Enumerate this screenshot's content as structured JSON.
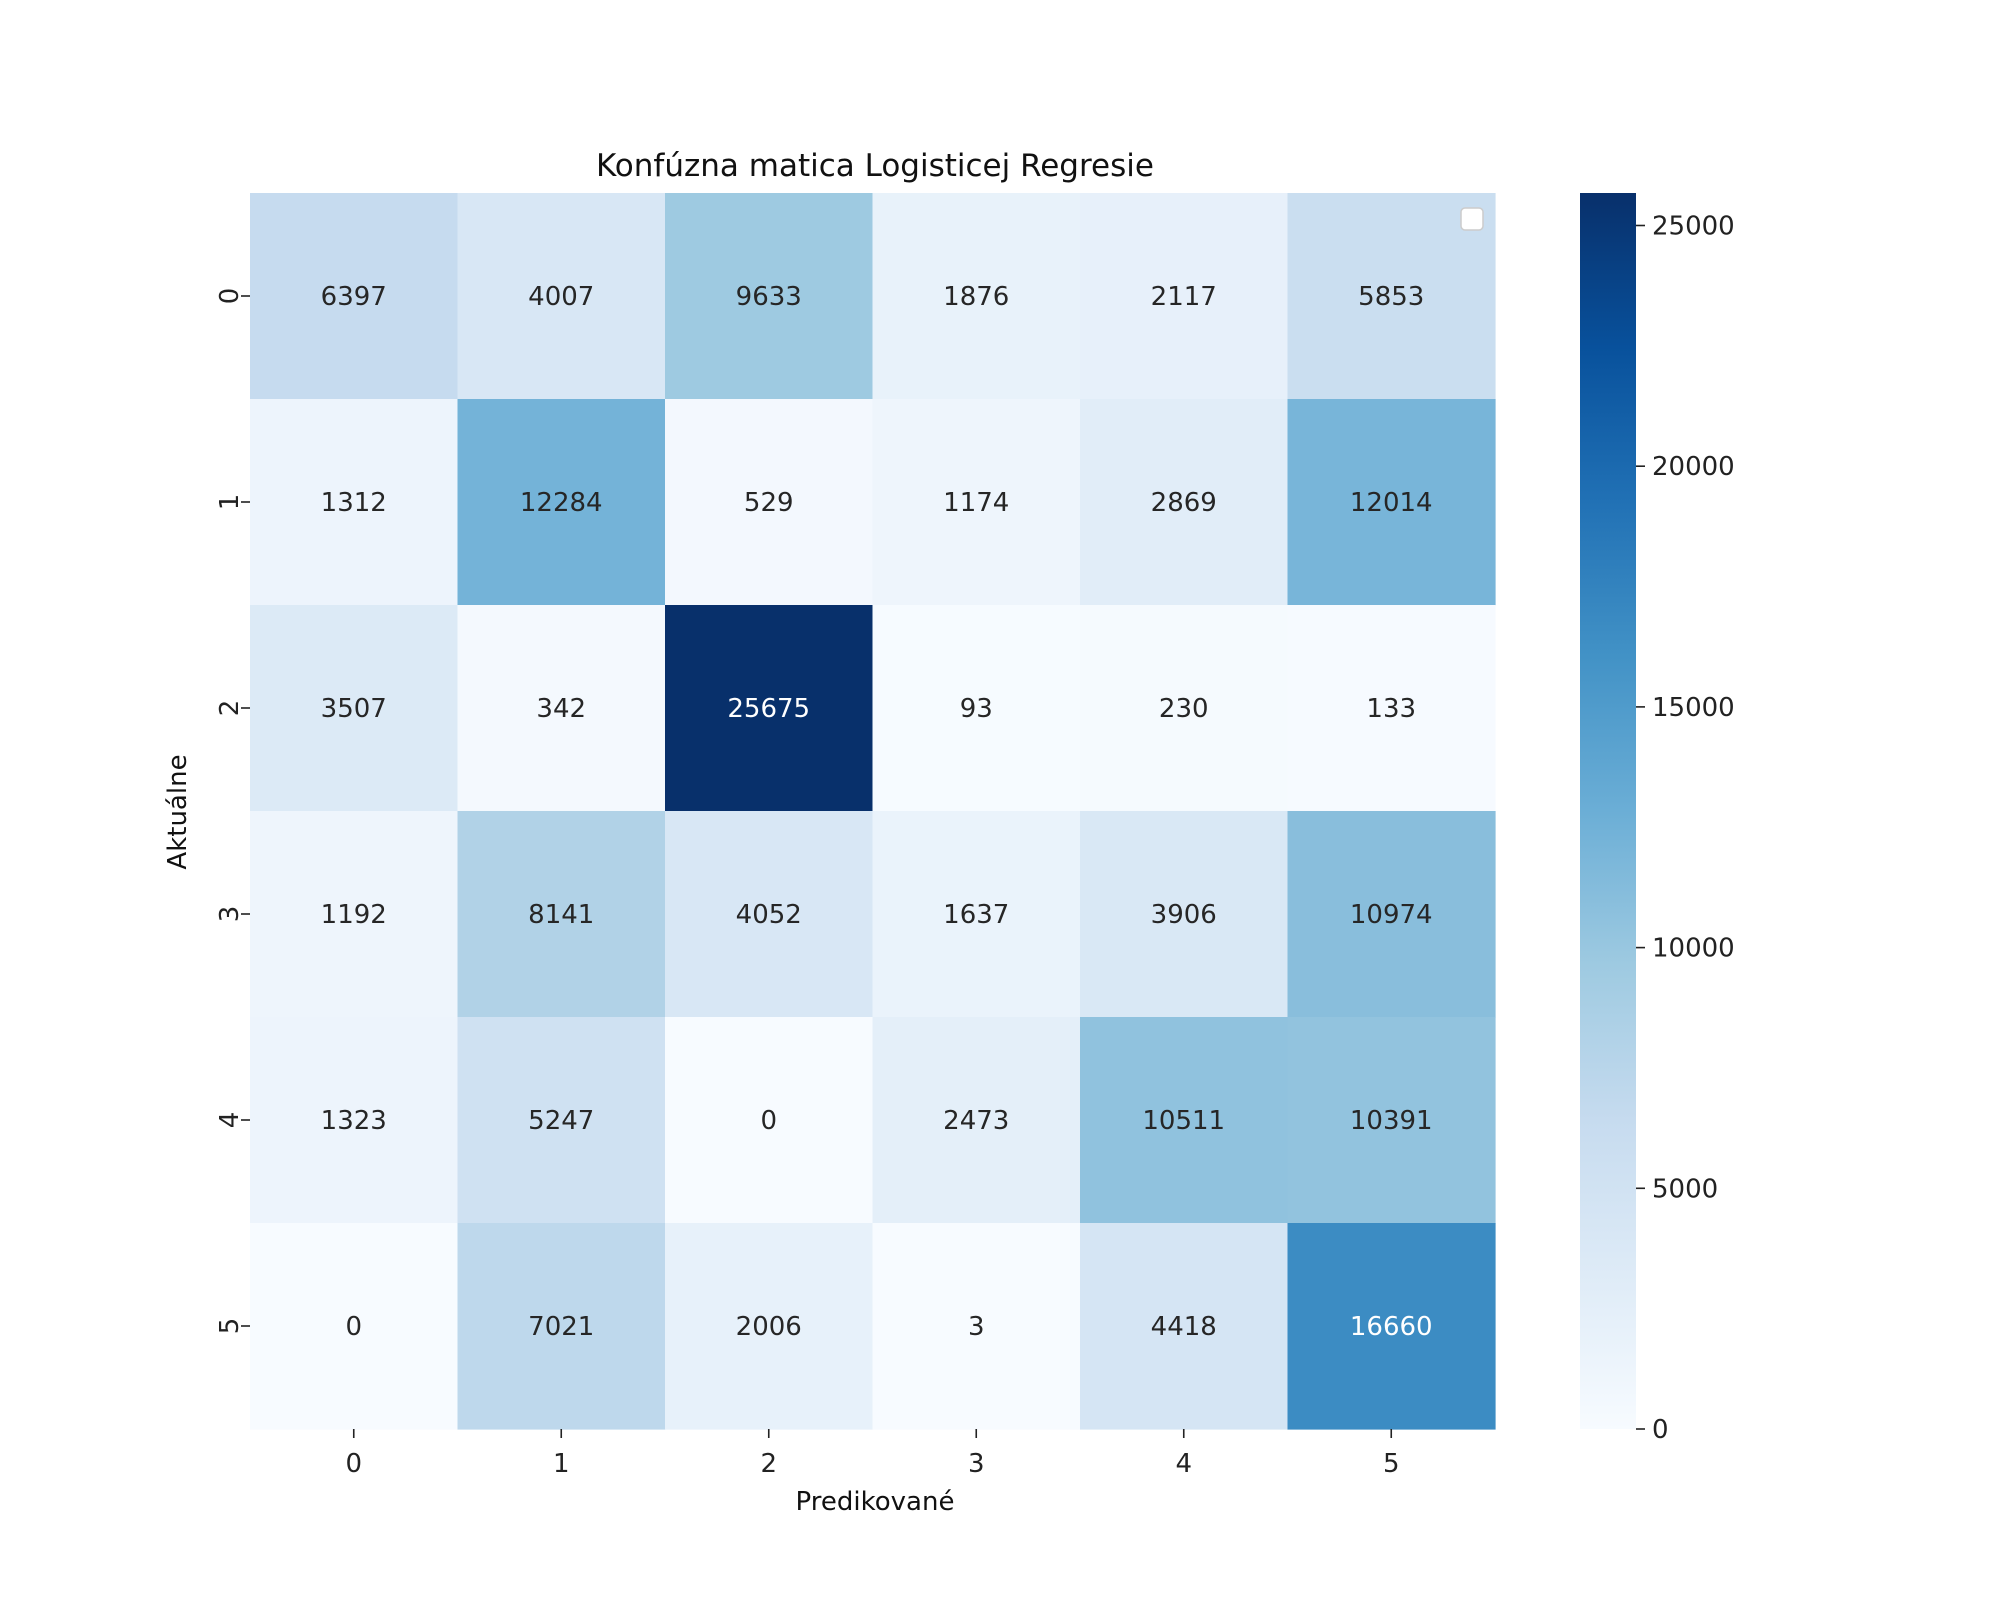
{
  "chart_data": {
    "type": "heatmap",
    "title": "Konfúzna matica Logisticej Regresie",
    "xlabel": "Predikované",
    "ylabel": "Aktuálne",
    "x_categories": [
      "0",
      "1",
      "2",
      "3",
      "4",
      "5"
    ],
    "y_categories": [
      "0",
      "1",
      "2",
      "3",
      "4",
      "5"
    ],
    "values": [
      [
        6397,
        4007,
        9633,
        1876,
        2117,
        5853
      ],
      [
        1312,
        12284,
        529,
        1174,
        2869,
        12014
      ],
      [
        3507,
        342,
        25675,
        93,
        230,
        133
      ],
      [
        1192,
        8141,
        4052,
        1637,
        3906,
        10974
      ],
      [
        1323,
        5247,
        0,
        2473,
        10511,
        10391
      ],
      [
        0,
        7021,
        2006,
        3,
        4418,
        16660
      ]
    ],
    "colorbar": {
      "min": 0,
      "max": 25675,
      "ticks": [
        0,
        5000,
        10000,
        15000,
        20000,
        25000
      ],
      "colormap": "Blues"
    },
    "legend": {
      "placement": "top-right",
      "entries": []
    }
  }
}
